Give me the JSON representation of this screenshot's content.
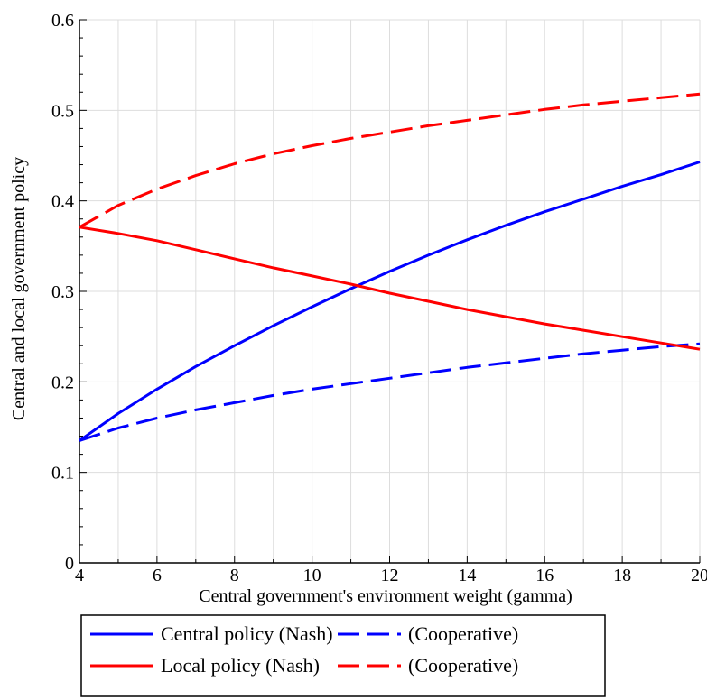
{
  "chart_data": {
    "type": "line",
    "title": "",
    "xlabel": "Central government's environment weight (gamma)",
    "ylabel": "Central and local government policy",
    "xlim": [
      4,
      20
    ],
    "ylim": [
      0,
      0.6
    ],
    "xticks": [
      4,
      6,
      8,
      10,
      12,
      14,
      16,
      18,
      20
    ],
    "xtick_labels": [
      "4",
      "6",
      "8",
      "10",
      "12",
      "14",
      "16",
      "18",
      "20"
    ],
    "yticks": [
      0,
      0.1,
      0.2,
      0.3,
      0.4,
      0.5,
      0.6
    ],
    "ytick_labels": [
      "0",
      "0.1",
      "0.2",
      "0.3",
      "0.4",
      "0.5",
      "0.6"
    ],
    "grid": true,
    "legend_position": "bottom",
    "x": [
      4,
      5,
      6,
      7,
      8,
      9,
      10,
      11,
      12,
      13,
      14,
      15,
      16,
      17,
      18,
      19,
      20
    ],
    "series": [
      {
        "name": "Central policy (Nash)",
        "color": "#0000ff",
        "dash": "solid",
        "values": [
          0.135,
          0.165,
          0.192,
          0.217,
          0.24,
          0.262,
          0.283,
          0.303,
          0.322,
          0.34,
          0.357,
          0.373,
          0.388,
          0.402,
          0.416,
          0.429,
          0.443
        ]
      },
      {
        "name": "(Cooperative)",
        "color": "#0000ff",
        "dash": "dashed",
        "values": [
          0.135,
          0.149,
          0.16,
          0.169,
          0.177,
          0.185,
          0.192,
          0.198,
          0.204,
          0.21,
          0.216,
          0.221,
          0.226,
          0.231,
          0.235,
          0.239,
          0.242
        ]
      },
      {
        "name": "Local policy (Nash)",
        "color": "#ff0000",
        "dash": "solid",
        "values": [
          0.371,
          0.364,
          0.356,
          0.346,
          0.336,
          0.326,
          0.317,
          0.308,
          0.298,
          0.289,
          0.28,
          0.272,
          0.264,
          0.257,
          0.25,
          0.243,
          0.236
        ]
      },
      {
        "name": "(Cooperative)",
        "color": "#ff0000",
        "dash": "dashed",
        "values": [
          0.371,
          0.395,
          0.413,
          0.428,
          0.441,
          0.452,
          0.461,
          0.469,
          0.476,
          0.483,
          0.489,
          0.495,
          0.501,
          0.506,
          0.51,
          0.514,
          0.518
        ]
      }
    ]
  }
}
